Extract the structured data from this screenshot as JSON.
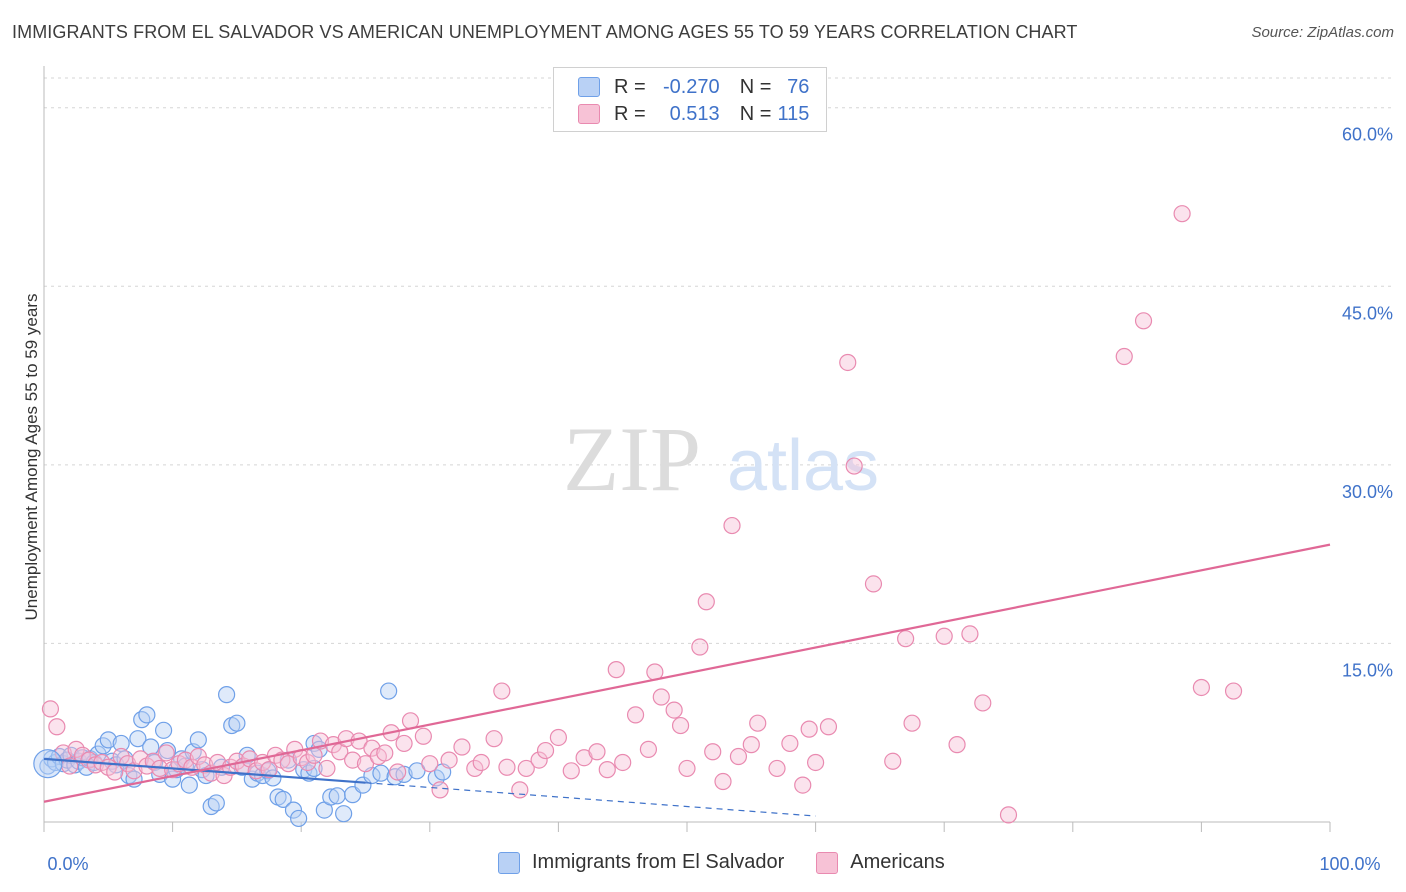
{
  "title": "IMMIGRANTS FROM EL SALVADOR VS AMERICAN UNEMPLOYMENT AMONG AGES 55 TO 59 YEARS CORRELATION CHART",
  "source": "Source: ZipAtlas.com",
  "watermark": {
    "zip": "ZIP",
    "atlas": "atlas"
  },
  "legend": {
    "r_label": "R =",
    "n_label": "N =",
    "series": [
      {
        "r": "-0.270",
        "n": "76",
        "color": "#6fa0e8",
        "fill": "#b9d1f5"
      },
      {
        "r": "0.513",
        "n": "115",
        "color": "#e98ab0",
        "fill": "#f7c2d6"
      }
    ]
  },
  "bottom_legend": [
    {
      "label": "Immigrants from El Salvador",
      "fill": "#b9d1f5",
      "stroke": "#6fa0e8"
    },
    {
      "label": "Americans",
      "fill": "#f7c2d6",
      "stroke": "#e98ab0"
    }
  ],
  "chart_data": {
    "type": "scatter",
    "xlabel": "",
    "ylabel": "Unemployment Among Ages 55 to 59 years",
    "xlim": [
      0,
      100
    ],
    "ylim": [
      0,
      63
    ],
    "x_ticks": [
      {
        "value": 0,
        "label": "0.0%"
      },
      {
        "value": 100,
        "label": "100.0%"
      }
    ],
    "y_ticks": [
      {
        "value": 15,
        "label": "15.0%"
      },
      {
        "value": 30,
        "label": "30.0%"
      },
      {
        "value": 45,
        "label": "45.0%"
      },
      {
        "value": 60,
        "label": "60.0%"
      }
    ],
    "series": [
      {
        "name": "Immigrants from El Salvador",
        "stroke": "#6fa0e8",
        "fill": "#b9d1f5",
        "trend_solid": [
          [
            0,
            5.3
          ],
          [
            25,
            3.3
          ]
        ],
        "trend_dashed": [
          [
            25,
            3.3
          ],
          [
            60,
            0.5
          ]
        ],
        "points": [
          [
            0.3,
            4.7
          ],
          [
            0.6,
            5.3
          ],
          [
            0.9,
            5.0
          ],
          [
            1.2,
            5.5
          ],
          [
            1.5,
            4.9
          ],
          [
            1.8,
            5.2
          ],
          [
            2.1,
            5.6
          ],
          [
            2.4,
            4.8
          ],
          [
            2.7,
            5.1
          ],
          [
            3.0,
            5.4
          ],
          [
            3.3,
            4.6
          ],
          [
            3.6,
            5.3
          ],
          [
            3.9,
            5.0
          ],
          [
            4.2,
            5.7
          ],
          [
            4.6,
            6.4
          ],
          [
            5.0,
            6.9
          ],
          [
            5.3,
            5.1
          ],
          [
            5.6,
            4.8
          ],
          [
            6.0,
            6.6
          ],
          [
            6.3,
            5.3
          ],
          [
            6.6,
            3.9
          ],
          [
            7.0,
            3.6
          ],
          [
            7.3,
            7.0
          ],
          [
            7.6,
            8.6
          ],
          [
            8.0,
            9.0
          ],
          [
            8.3,
            6.3
          ],
          [
            8.6,
            5.0
          ],
          [
            9.0,
            4.0
          ],
          [
            9.3,
            7.7
          ],
          [
            9.6,
            6.0
          ],
          [
            10.0,
            3.6
          ],
          [
            10.3,
            4.4
          ],
          [
            10.7,
            5.3
          ],
          [
            11.0,
            4.7
          ],
          [
            11.3,
            3.1
          ],
          [
            11.6,
            5.9
          ],
          [
            12.0,
            6.9
          ],
          [
            12.3,
            4.4
          ],
          [
            12.6,
            3.9
          ],
          [
            13.0,
            1.3
          ],
          [
            13.4,
            1.6
          ],
          [
            13.8,
            4.6
          ],
          [
            14.2,
            10.7
          ],
          [
            14.6,
            8.1
          ],
          [
            15.0,
            8.3
          ],
          [
            15.4,
            4.6
          ],
          [
            15.8,
            5.6
          ],
          [
            16.2,
            3.6
          ],
          [
            16.6,
            4.1
          ],
          [
            17.0,
            3.9
          ],
          [
            17.4,
            4.3
          ],
          [
            17.8,
            3.7
          ],
          [
            18.2,
            2.1
          ],
          [
            18.6,
            1.9
          ],
          [
            19.0,
            5.2
          ],
          [
            19.4,
            1.0
          ],
          [
            19.8,
            0.3
          ],
          [
            20.2,
            4.4
          ],
          [
            20.6,
            4.1
          ],
          [
            21.0,
            6.6
          ],
          [
            21.4,
            6.1
          ],
          [
            21.8,
            1.0
          ],
          [
            22.3,
            2.1
          ],
          [
            22.8,
            2.2
          ],
          [
            23.3,
            0.7
          ],
          [
            24.0,
            2.3
          ],
          [
            24.8,
            3.1
          ],
          [
            25.5,
            3.9
          ],
          [
            26.2,
            4.1
          ],
          [
            26.8,
            11.0
          ],
          [
            27.3,
            3.8
          ],
          [
            28.0,
            4.0
          ],
          [
            29.0,
            4.3
          ],
          [
            30.5,
            3.7
          ],
          [
            31.0,
            4.2
          ],
          [
            21.0,
            4.5
          ]
        ]
      },
      {
        "name": "Americans",
        "stroke": "#e98ab0",
        "fill": "#f7c2d6",
        "trend_solid": [
          [
            0,
            1.7
          ],
          [
            100,
            23.3
          ]
        ],
        "points": [
          [
            0.5,
            9.5
          ],
          [
            1.0,
            8.0
          ],
          [
            1.5,
            5.8
          ],
          [
            2.0,
            4.7
          ],
          [
            2.5,
            6.1
          ],
          [
            3.0,
            5.6
          ],
          [
            3.5,
            5.2
          ],
          [
            4.0,
            4.8
          ],
          [
            4.5,
            5.0
          ],
          [
            5.0,
            4.6
          ],
          [
            5.5,
            4.2
          ],
          [
            6.0,
            5.5
          ],
          [
            6.5,
            4.9
          ],
          [
            7.0,
            4.3
          ],
          [
            7.5,
            5.3
          ],
          [
            8.0,
            4.7
          ],
          [
            8.5,
            5.1
          ],
          [
            9.0,
            4.5
          ],
          [
            9.5,
            5.8
          ],
          [
            10.0,
            4.4
          ],
          [
            10.5,
            4.9
          ],
          [
            11.0,
            5.2
          ],
          [
            11.5,
            4.6
          ],
          [
            12.0,
            5.5
          ],
          [
            12.5,
            4.8
          ],
          [
            13.0,
            4.1
          ],
          [
            13.5,
            5.0
          ],
          [
            14.0,
            3.9
          ],
          [
            14.5,
            4.6
          ],
          [
            15.0,
            5.1
          ],
          [
            15.5,
            4.7
          ],
          [
            16.0,
            5.3
          ],
          [
            16.5,
            4.3
          ],
          [
            17.0,
            5.0
          ],
          [
            17.5,
            4.4
          ],
          [
            18.0,
            5.6
          ],
          [
            18.5,
            5.2
          ],
          [
            19.0,
            4.9
          ],
          [
            19.5,
            6.1
          ],
          [
            20.0,
            5.4
          ],
          [
            20.5,
            5.0
          ],
          [
            21.0,
            5.6
          ],
          [
            21.5,
            6.8
          ],
          [
            22.0,
            4.5
          ],
          [
            22.5,
            6.5
          ],
          [
            23.0,
            5.9
          ],
          [
            23.5,
            7.0
          ],
          [
            24.0,
            5.2
          ],
          [
            24.5,
            6.8
          ],
          [
            25.0,
            4.9
          ],
          [
            25.5,
            6.2
          ],
          [
            26.0,
            5.5
          ],
          [
            26.5,
            5.8
          ],
          [
            27.0,
            7.5
          ],
          [
            27.5,
            4.2
          ],
          [
            28.0,
            6.6
          ],
          [
            28.5,
            8.5
          ],
          [
            29.5,
            7.2
          ],
          [
            30.0,
            4.9
          ],
          [
            30.8,
            2.7
          ],
          [
            31.5,
            5.2
          ],
          [
            32.5,
            6.3
          ],
          [
            33.5,
            4.5
          ],
          [
            34.0,
            5.0
          ],
          [
            35.0,
            7.0
          ],
          [
            35.6,
            11.0
          ],
          [
            36.0,
            4.6
          ],
          [
            37.0,
            2.7
          ],
          [
            37.5,
            4.5
          ],
          [
            38.5,
            5.2
          ],
          [
            39.0,
            6.0
          ],
          [
            40.0,
            7.1
          ],
          [
            41.0,
            4.3
          ],
          [
            42.0,
            5.4
          ],
          [
            43.0,
            5.9
          ],
          [
            43.8,
            4.4
          ],
          [
            44.5,
            12.8
          ],
          [
            45.0,
            5.0
          ],
          [
            46.0,
            9.0
          ],
          [
            47.0,
            6.1
          ],
          [
            47.5,
            12.6
          ],
          [
            48.0,
            10.5
          ],
          [
            49.0,
            9.4
          ],
          [
            49.5,
            8.1
          ],
          [
            50.0,
            4.5
          ],
          [
            51.0,
            14.7
          ],
          [
            52.0,
            5.9
          ],
          [
            52.8,
            3.4
          ],
          [
            53.5,
            24.9
          ],
          [
            54.0,
            5.5
          ],
          [
            55.0,
            6.5
          ],
          [
            55.5,
            8.3
          ],
          [
            57.0,
            4.5
          ],
          [
            58.0,
            6.6
          ],
          [
            59.0,
            3.1
          ],
          [
            59.5,
            7.8
          ],
          [
            60.0,
            5.0
          ],
          [
            61.0,
            8.0
          ],
          [
            62.5,
            38.6
          ],
          [
            63.0,
            29.9
          ],
          [
            64.5,
            20.0
          ],
          [
            66.0,
            5.1
          ],
          [
            67.5,
            8.3
          ],
          [
            70.0,
            15.6
          ],
          [
            71.0,
            6.5
          ],
          [
            72.0,
            15.8
          ],
          [
            73.0,
            10.0
          ],
          [
            75.0,
            0.6
          ],
          [
            84.0,
            39.1
          ],
          [
            85.5,
            42.1
          ],
          [
            88.5,
            51.1
          ],
          [
            90.0,
            11.3
          ],
          [
            92.5,
            11.0
          ],
          [
            67.0,
            15.4
          ],
          [
            51.5,
            18.5
          ]
        ]
      }
    ]
  }
}
